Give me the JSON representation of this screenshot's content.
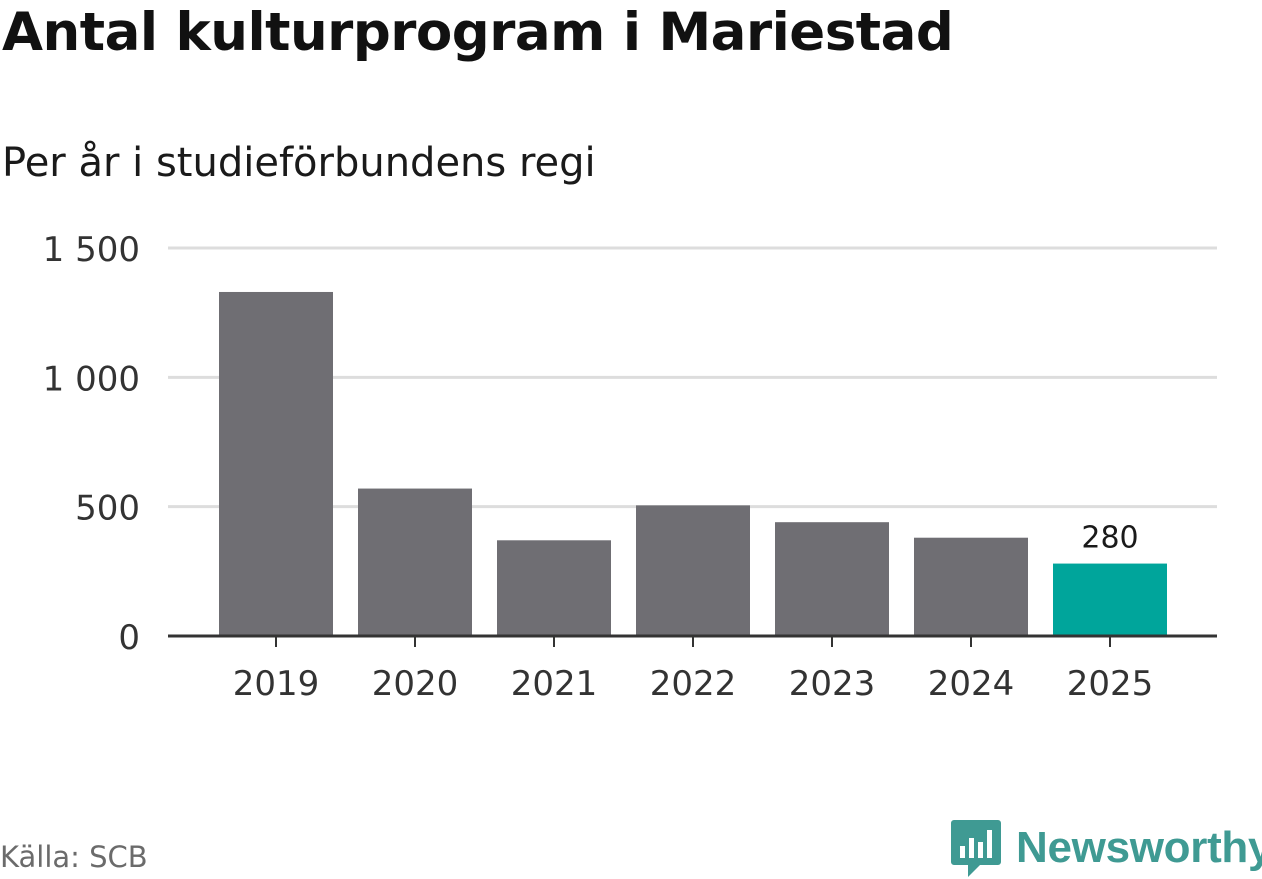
{
  "header": {
    "title": "Antal kulturprogram i Mariestad",
    "subtitle": "Per år i studieförbundens regi"
  },
  "footer": {
    "source": "Källa: SCB",
    "brand": "Newsworthy"
  },
  "colors": {
    "bar": "#6f6e73",
    "highlight": "#00a59b",
    "grid": "#dddddd",
    "axis": "#333333",
    "brand": "#3f9a93"
  },
  "chart_data": {
    "type": "bar",
    "title": "Antal kulturprogram i Mariestad",
    "subtitle": "Per år i studieförbundens regi",
    "xlabel": "",
    "ylabel": "",
    "categories": [
      "2019",
      "2020",
      "2021",
      "2022",
      "2023",
      "2024",
      "2025"
    ],
    "values": [
      1330,
      570,
      370,
      505,
      440,
      380,
      280
    ],
    "highlight_index": 6,
    "data_labels": [
      {
        "index": 6,
        "text": "280"
      }
    ],
    "ylim": [
      0,
      1500
    ],
    "yticks": [
      0,
      500,
      1000,
      1500
    ],
    "ytick_labels": [
      "0",
      "500",
      "1 000",
      "1 500"
    ],
    "grid": true,
    "legend": "none"
  }
}
